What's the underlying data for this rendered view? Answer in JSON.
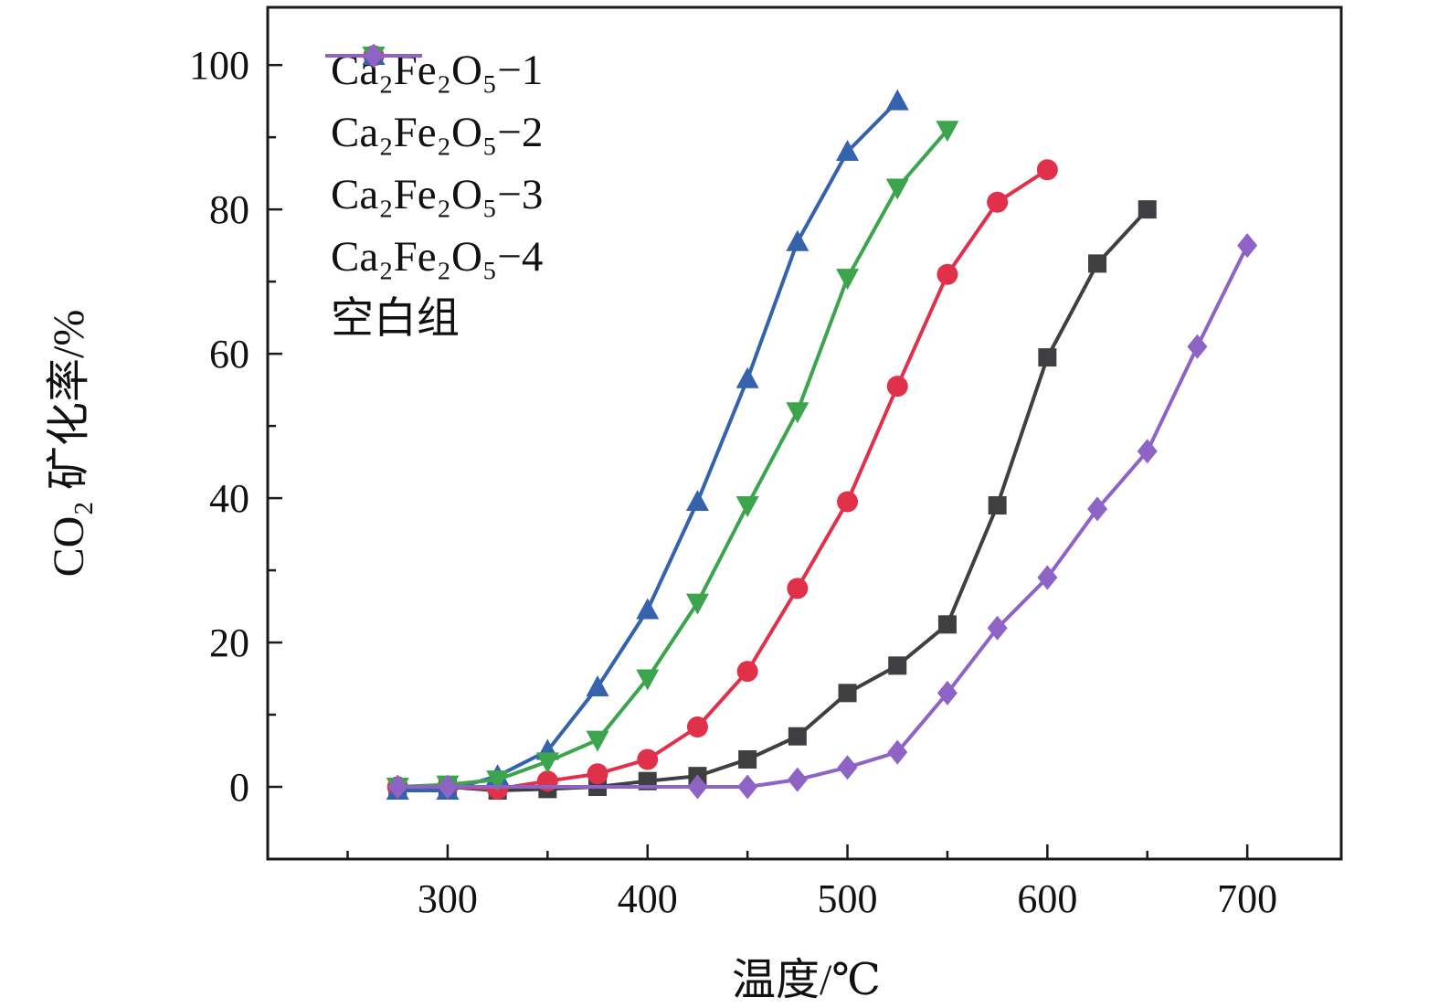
{
  "chart_data": {
    "type": "line",
    "title": "",
    "xlabel": "温度/℃",
    "ylabel": "CO₂ 矿化率/%",
    "xlim": [
      210,
      747
    ],
    "ylim": [
      -10,
      108
    ],
    "xticks": [
      300,
      400,
      500,
      600,
      700
    ],
    "yticks": [
      0,
      20,
      40,
      60,
      80,
      100
    ],
    "grid": false,
    "legend_position": "top-left-inside",
    "frame_color": "#1a1a1a",
    "series": [
      {
        "name": "Ca₂Fe₂O₅−1",
        "color": "#3f3f41",
        "marker": "square",
        "x": [
          275,
          300,
          325,
          350,
          375,
          400,
          425,
          450,
          475,
          500,
          525,
          550,
          575,
          600,
          625,
          650
        ],
        "y": [
          0,
          0,
          -0.5,
          -0.3,
          0,
          0.8,
          1.5,
          3.8,
          7,
          13,
          16.8,
          22.5,
          39,
          59.5,
          72.5,
          80
        ]
      },
      {
        "name": "Ca₂Fe₂O₅−2",
        "color": "#e0304a",
        "marker": "circle",
        "x": [
          275,
          300,
          325,
          350,
          375,
          400,
          425,
          450,
          475,
          500,
          525,
          550,
          575,
          600
        ],
        "y": [
          0,
          0,
          -0.3,
          0.8,
          1.8,
          3.8,
          8.3,
          16,
          27.5,
          39.5,
          55.5,
          71,
          81,
          85.5
        ]
      },
      {
        "name": "Ca₂Fe₂O₅−3",
        "color": "#3462ad",
        "marker": "triangle-up",
        "x": [
          275,
          300,
          325,
          350,
          375,
          400,
          425,
          450,
          475,
          500,
          525
        ],
        "y": [
          -0.5,
          -0.5,
          1.5,
          5,
          13.8,
          24.5,
          39.5,
          56.5,
          75.5,
          88,
          95
        ]
      },
      {
        "name": "Ca₂Fe₂O₅−4",
        "color": "#3ba44c",
        "marker": "triangle-down",
        "x": [
          275,
          300,
          325,
          350,
          375,
          400,
          425,
          450,
          475,
          500,
          525,
          550
        ],
        "y": [
          0,
          0.3,
          1,
          3.5,
          6.5,
          15,
          25.5,
          39,
          52,
          70.5,
          83,
          91
        ]
      },
      {
        "name": "空白组",
        "color": "#8d63c6",
        "marker": "diamond",
        "x": [
          275,
          300,
          425,
          450,
          475,
          500,
          525,
          550,
          575,
          600,
          625,
          650,
          675,
          700
        ],
        "y": [
          0,
          0,
          0,
          0,
          1,
          2.7,
          4.8,
          13,
          22,
          29,
          38.5,
          46.5,
          61,
          75
        ]
      }
    ]
  }
}
